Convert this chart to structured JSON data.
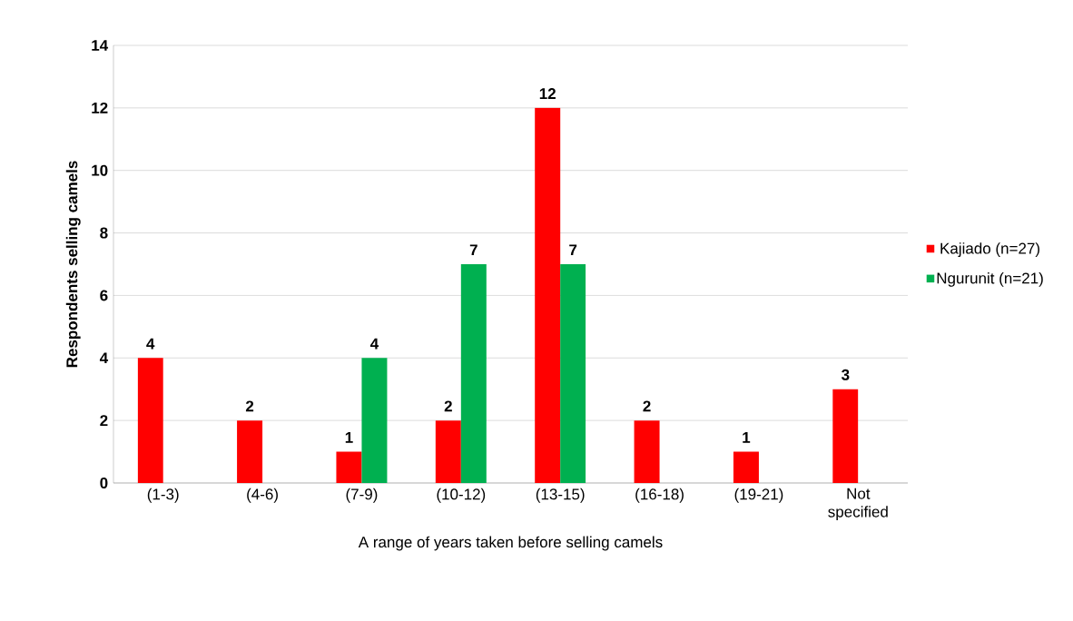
{
  "chart_data": {
    "type": "bar",
    "xlabel": "A range of years taken before selling camels",
    "ylabel": "Respondents selling camels",
    "categories": [
      "(1-3)",
      "(4-6)",
      "(7-9)",
      "(10-12)",
      "(13-15)",
      "(16-18)",
      "(19-21)",
      "Not specified"
    ],
    "series": [
      {
        "name": "Kajiado (n=27)",
        "color": "#ff0000",
        "values": [
          4,
          2,
          1,
          2,
          12,
          2,
          1,
          3
        ]
      },
      {
        "name": "Ngurunit (n=21)",
        "color": "#00b050",
        "values": [
          null,
          null,
          4,
          7,
          7,
          null,
          null,
          null
        ]
      }
    ],
    "ylim": [
      0,
      14
    ],
    "yticks": [
      0,
      2,
      4,
      6,
      8,
      10,
      12,
      14
    ],
    "grid": "y",
    "legend": "right",
    "data_labels": true
  }
}
